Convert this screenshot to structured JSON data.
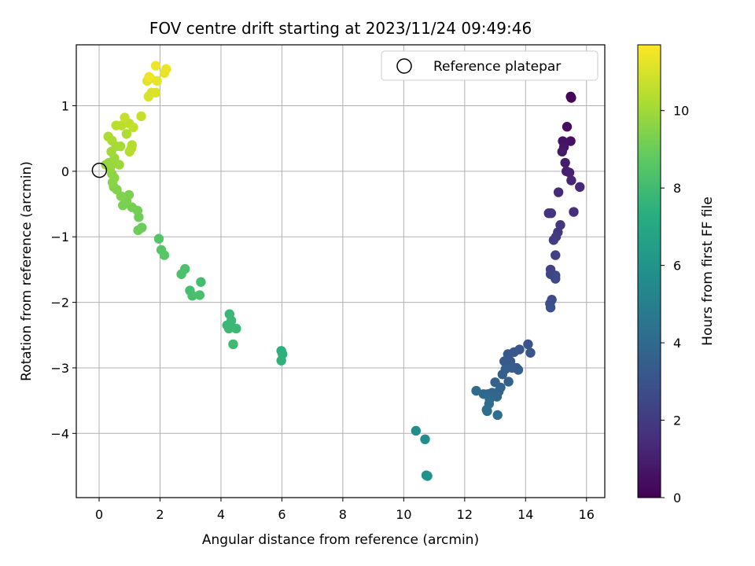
{
  "chart_data": {
    "type": "scatter",
    "title": "FOV centre drift starting at 2023/11/24 09:49:46",
    "xlabel": "Angular distance from reference (arcmin)",
    "ylabel": "Rotation from reference (arcmin)",
    "xlim": [
      -0.75,
      16.6
    ],
    "ylim": [
      -4.98,
      1.93
    ],
    "xticks": [
      0,
      2,
      4,
      6,
      8,
      10,
      12,
      14,
      16
    ],
    "yticks": [
      -4,
      -3,
      -2,
      -1,
      0,
      1
    ],
    "xtick_labels": [
      "0",
      "2",
      "4",
      "6",
      "8",
      "10",
      "12",
      "14",
      "16"
    ],
    "ytick_labels": [
      "−4",
      "−3",
      "−2",
      "−1",
      "0",
      "1"
    ],
    "grid": true,
    "legend": {
      "position": "top-right",
      "entries": [
        "Reference platepar"
      ]
    },
    "reference_point": {
      "x": 0,
      "y": 0
    },
    "colorbar": {
      "label": "Hours from first FF file",
      "colormap": "viridis",
      "range": [
        0,
        11.7
      ],
      "ticks": [
        0,
        2,
        4,
        6,
        8,
        10
      ],
      "tick_labels": [
        "0",
        "2",
        "4",
        "6",
        "8",
        "10"
      ]
    },
    "points": [
      {
        "x": 15.48,
        "y": 1.14,
        "h": 0.1
      },
      {
        "x": 15.5,
        "y": 1.12,
        "h": 0.2
      },
      {
        "x": 15.36,
        "y": 0.68,
        "h": 0.4
      },
      {
        "x": 15.48,
        "y": 0.46,
        "h": 0.5
      },
      {
        "x": 15.22,
        "y": 0.46,
        "h": 0.6
      },
      {
        "x": 15.26,
        "y": 0.37,
        "h": 0.7
      },
      {
        "x": 15.2,
        "y": 0.3,
        "h": 0.8
      },
      {
        "x": 15.3,
        "y": 0.13,
        "h": 0.9
      },
      {
        "x": 15.34,
        "y": 0.0,
        "h": 1.0
      },
      {
        "x": 15.44,
        "y": -0.02,
        "h": 1.1
      },
      {
        "x": 15.5,
        "y": -0.14,
        "h": 1.2
      },
      {
        "x": 15.78,
        "y": -0.24,
        "h": 1.3
      },
      {
        "x": 15.08,
        "y": -0.32,
        "h": 1.4
      },
      {
        "x": 15.58,
        "y": -0.62,
        "h": 1.5
      },
      {
        "x": 14.76,
        "y": -0.64,
        "h": 1.6
      },
      {
        "x": 14.84,
        "y": -0.64,
        "h": 1.7
      },
      {
        "x": 15.14,
        "y": -0.82,
        "h": 1.8
      },
      {
        "x": 15.06,
        "y": -0.93,
        "h": 1.9
      },
      {
        "x": 15.0,
        "y": -1.0,
        "h": 2.0
      },
      {
        "x": 14.92,
        "y": -1.05,
        "h": 2.1
      },
      {
        "x": 14.98,
        "y": -1.28,
        "h": 2.2
      },
      {
        "x": 14.82,
        "y": -1.5,
        "h": 2.3
      },
      {
        "x": 14.82,
        "y": -1.57,
        "h": 2.4
      },
      {
        "x": 14.98,
        "y": -1.59,
        "h": 2.5
      },
      {
        "x": 14.98,
        "y": -1.64,
        "h": 2.6
      },
      {
        "x": 14.86,
        "y": -1.96,
        "h": 2.7
      },
      {
        "x": 14.8,
        "y": -2.02,
        "h": 2.8
      },
      {
        "x": 14.82,
        "y": -2.08,
        "h": 2.9
      },
      {
        "x": 14.08,
        "y": -2.64,
        "h": 3.0
      },
      {
        "x": 14.16,
        "y": -2.77,
        "h": 3.05
      },
      {
        "x": 13.8,
        "y": -2.72,
        "h": 3.1
      },
      {
        "x": 13.62,
        "y": -2.76,
        "h": 3.15
      },
      {
        "x": 13.42,
        "y": -2.79,
        "h": 3.2
      },
      {
        "x": 13.3,
        "y": -2.9,
        "h": 3.25
      },
      {
        "x": 13.5,
        "y": -2.9,
        "h": 3.3
      },
      {
        "x": 13.7,
        "y": -3.0,
        "h": 3.35
      },
      {
        "x": 13.76,
        "y": -3.03,
        "h": 3.4
      },
      {
        "x": 13.56,
        "y": -3.0,
        "h": 3.45
      },
      {
        "x": 13.34,
        "y": -3.02,
        "h": 3.5
      },
      {
        "x": 13.24,
        "y": -3.1,
        "h": 3.55
      },
      {
        "x": 13.44,
        "y": -3.21,
        "h": 3.6
      },
      {
        "x": 13.0,
        "y": -3.22,
        "h": 3.65
      },
      {
        "x": 13.18,
        "y": -3.3,
        "h": 3.7
      },
      {
        "x": 13.12,
        "y": -3.36,
        "h": 3.75
      },
      {
        "x": 12.9,
        "y": -3.38,
        "h": 3.8
      },
      {
        "x": 13.06,
        "y": -3.44,
        "h": 3.85
      },
      {
        "x": 12.76,
        "y": -3.4,
        "h": 3.9
      },
      {
        "x": 12.62,
        "y": -3.4,
        "h": 3.95
      },
      {
        "x": 12.38,
        "y": -3.35,
        "h": 4.0
      },
      {
        "x": 12.82,
        "y": -3.48,
        "h": 4.05
      },
      {
        "x": 12.8,
        "y": -3.55,
        "h": 4.1
      },
      {
        "x": 12.72,
        "y": -3.64,
        "h": 4.15
      },
      {
        "x": 12.74,
        "y": -3.66,
        "h": 4.2
      },
      {
        "x": 13.08,
        "y": -3.72,
        "h": 4.25
      },
      {
        "x": 10.4,
        "y": -3.96,
        "h": 5.6
      },
      {
        "x": 10.7,
        "y": -4.09,
        "h": 5.7
      },
      {
        "x": 10.74,
        "y": -4.64,
        "h": 5.8
      },
      {
        "x": 10.78,
        "y": -4.65,
        "h": 5.9
      },
      {
        "x": 5.98,
        "y": -2.74,
        "h": 7.4
      },
      {
        "x": 6.02,
        "y": -2.79,
        "h": 7.45
      },
      {
        "x": 5.98,
        "y": -2.89,
        "h": 7.5
      },
      {
        "x": 4.28,
        "y": -2.18,
        "h": 7.8
      },
      {
        "x": 4.34,
        "y": -2.28,
        "h": 7.82
      },
      {
        "x": 4.2,
        "y": -2.35,
        "h": 7.84
      },
      {
        "x": 4.5,
        "y": -2.4,
        "h": 7.86
      },
      {
        "x": 4.26,
        "y": -2.4,
        "h": 7.88
      },
      {
        "x": 4.4,
        "y": -2.64,
        "h": 7.9
      },
      {
        "x": 3.34,
        "y": -1.69,
        "h": 8.1
      },
      {
        "x": 2.98,
        "y": -1.82,
        "h": 8.15
      },
      {
        "x": 3.06,
        "y": -1.9,
        "h": 8.2
      },
      {
        "x": 3.3,
        "y": -1.89,
        "h": 8.25
      },
      {
        "x": 2.82,
        "y": -1.49,
        "h": 8.3
      },
      {
        "x": 2.7,
        "y": -1.57,
        "h": 8.35
      },
      {
        "x": 1.96,
        "y": -1.03,
        "h": 8.5
      },
      {
        "x": 2.04,
        "y": -1.2,
        "h": 8.55
      },
      {
        "x": 2.14,
        "y": -1.28,
        "h": 8.6
      },
      {
        "x": 1.4,
        "y": -0.86,
        "h": 9.0
      },
      {
        "x": 1.28,
        "y": -0.9,
        "h": 9.05
      },
      {
        "x": 1.3,
        "y": -0.7,
        "h": 9.1
      },
      {
        "x": 1.26,
        "y": -0.6,
        "h": 9.15
      },
      {
        "x": 1.08,
        "y": -0.55,
        "h": 9.2
      },
      {
        "x": 0.78,
        "y": -0.52,
        "h": 9.25
      },
      {
        "x": 0.9,
        "y": -0.45,
        "h": 9.3
      },
      {
        "x": 0.98,
        "y": -0.36,
        "h": 9.35
      },
      {
        "x": 0.72,
        "y": -0.38,
        "h": 9.4
      },
      {
        "x": 0.58,
        "y": -0.28,
        "h": 9.45
      },
      {
        "x": 0.48,
        "y": -0.24,
        "h": 9.5
      },
      {
        "x": 0.44,
        "y": -0.17,
        "h": 9.55
      },
      {
        "x": 0.5,
        "y": -0.1,
        "h": 9.6
      },
      {
        "x": 0.42,
        "y": -0.04,
        "h": 9.65
      },
      {
        "x": 0.36,
        "y": 0.05,
        "h": 9.7
      },
      {
        "x": 0.22,
        "y": 0.1,
        "h": 9.75
      },
      {
        "x": 0.32,
        "y": 0.13,
        "h": 9.8
      },
      {
        "x": 0.42,
        "y": 0.1,
        "h": 9.85
      },
      {
        "x": 0.66,
        "y": 0.1,
        "h": 9.9
      },
      {
        "x": 0.5,
        "y": 0.2,
        "h": 9.95
      },
      {
        "x": 0.4,
        "y": 0.3,
        "h": 10.0
      },
      {
        "x": 0.56,
        "y": 0.38,
        "h": 10.05
      },
      {
        "x": 0.7,
        "y": 0.38,
        "h": 10.1
      },
      {
        "x": 0.42,
        "y": 0.47,
        "h": 10.15
      },
      {
        "x": 0.3,
        "y": 0.53,
        "h": 10.2
      },
      {
        "x": 0.9,
        "y": 0.57,
        "h": 10.25
      },
      {
        "x": 1.06,
        "y": 0.35,
        "h": 10.3
      },
      {
        "x": 1.08,
        "y": 0.4,
        "h": 10.35
      },
      {
        "x": 1.0,
        "y": 0.3,
        "h": 10.4
      },
      {
        "x": 0.56,
        "y": 0.7,
        "h": 10.45
      },
      {
        "x": 0.74,
        "y": 0.7,
        "h": 10.5
      },
      {
        "x": 0.98,
        "y": 0.73,
        "h": 10.55
      },
      {
        "x": 1.12,
        "y": 0.67,
        "h": 10.6
      },
      {
        "x": 0.84,
        "y": 0.82,
        "h": 10.65
      },
      {
        "x": 1.38,
        "y": 0.84,
        "h": 10.7
      },
      {
        "x": 1.62,
        "y": 1.14,
        "h": 11.0
      },
      {
        "x": 1.72,
        "y": 1.2,
        "h": 11.05
      },
      {
        "x": 1.86,
        "y": 1.2,
        "h": 11.1
      },
      {
        "x": 1.58,
        "y": 1.38,
        "h": 11.15
      },
      {
        "x": 1.68,
        "y": 1.42,
        "h": 11.2
      },
      {
        "x": 1.9,
        "y": 1.38,
        "h": 11.25
      },
      {
        "x": 2.14,
        "y": 1.5,
        "h": 11.3
      },
      {
        "x": 2.2,
        "y": 1.56,
        "h": 11.35
      },
      {
        "x": 1.86,
        "y": 1.61,
        "h": 11.4
      },
      {
        "x": 1.64,
        "y": 1.44,
        "h": 11.45
      }
    ]
  }
}
